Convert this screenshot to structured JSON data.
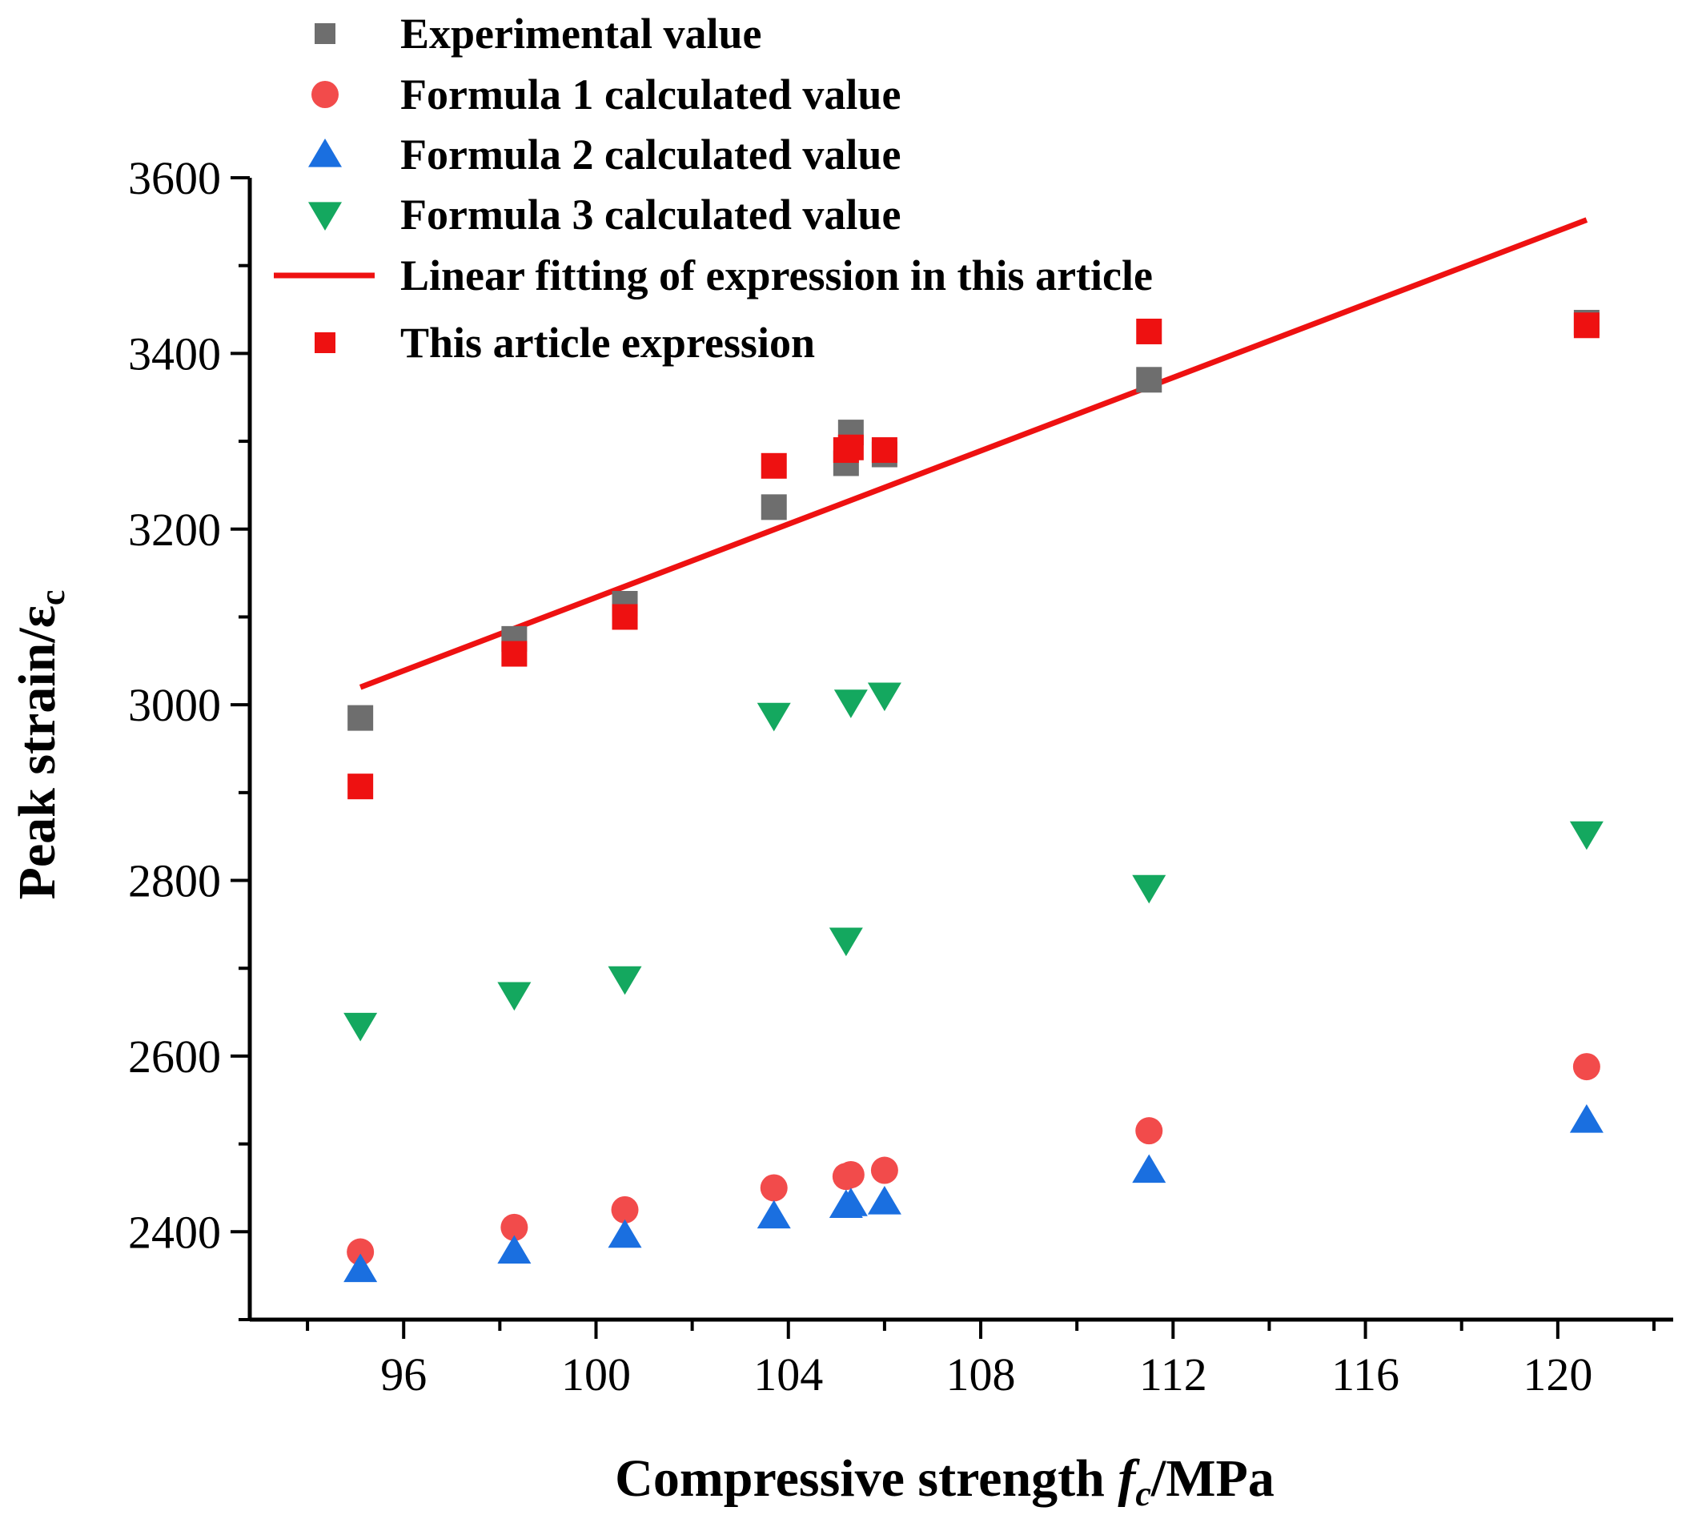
{
  "chart_data": {
    "type": "scatter",
    "xlabel": "Compressive strength fc/MPa",
    "xlabel_parts": {
      "prefix": "Compressive strength ",
      "var": "f",
      "sub": "c",
      "suffix": "/MPa"
    },
    "ylabel": "Peak strain/εc",
    "ylabel_parts": {
      "prefix": "Peak strain/",
      "sym": "ε",
      "sub": "c"
    },
    "xlim": [
      92.8,
      122.4
    ],
    "ylim": [
      2300,
      3600
    ],
    "xticks": [
      96,
      100,
      104,
      108,
      112,
      116,
      120
    ],
    "yticks": [
      2400,
      2600,
      2800,
      3000,
      3200,
      3400,
      3600
    ],
    "legend_position": "top-left",
    "series": [
      {
        "name": "Experimental value",
        "marker": "square",
        "color": "#6e6e6e",
        "points": [
          [
            95.1,
            2985
          ],
          [
            98.3,
            3075
          ],
          [
            100.6,
            3115
          ],
          [
            103.7,
            3225
          ],
          [
            105.2,
            3275
          ],
          [
            105.3,
            3310
          ],
          [
            106.0,
            3285
          ],
          [
            111.5,
            3370
          ],
          [
            120.6,
            3435
          ]
        ]
      },
      {
        "name": "Formula 1 calculated value",
        "marker": "circle",
        "color": "#f24b4b",
        "points": [
          [
            95.1,
            2377
          ],
          [
            98.3,
            2405
          ],
          [
            100.6,
            2425
          ],
          [
            103.7,
            2450
          ],
          [
            105.2,
            2463
          ],
          [
            105.3,
            2465
          ],
          [
            106.0,
            2470
          ],
          [
            111.5,
            2515
          ],
          [
            120.6,
            2588
          ]
        ]
      },
      {
        "name": "Formula 2 calculated value",
        "marker": "triangle-up",
        "color": "#1a6fe0",
        "points": [
          [
            95.1,
            2357
          ],
          [
            98.3,
            2378
          ],
          [
            100.6,
            2396
          ],
          [
            103.7,
            2418
          ],
          [
            105.2,
            2430
          ],
          [
            105.3,
            2432
          ],
          [
            106.0,
            2434
          ],
          [
            111.5,
            2470
          ],
          [
            120.6,
            2527
          ]
        ]
      },
      {
        "name": "Formula 3 calculated value",
        "marker": "triangle-down",
        "color": "#14a85f",
        "points": [
          [
            95.1,
            2635
          ],
          [
            98.3,
            2670
          ],
          [
            100.6,
            2688
          ],
          [
            103.7,
            2988
          ],
          [
            105.2,
            2732
          ],
          [
            105.3,
            3003
          ],
          [
            106.0,
            3011
          ],
          [
            111.5,
            2792
          ],
          [
            120.6,
            2853
          ]
        ]
      },
      {
        "name": "Linear fitting of expression in this article",
        "marker": "line",
        "color": "#ee1111",
        "points": [
          [
            95.1,
            3020
          ],
          [
            120.6,
            3552
          ]
        ]
      },
      {
        "name": " This article expression",
        "marker": "square",
        "color": "#ee1111",
        "points": [
          [
            95.1,
            2907
          ],
          [
            98.3,
            3058
          ],
          [
            100.6,
            3100
          ],
          [
            103.7,
            3272
          ],
          [
            105.2,
            3290
          ],
          [
            105.3,
            3293
          ],
          [
            106.0,
            3290
          ],
          [
            111.5,
            3425
          ],
          [
            120.6,
            3432
          ]
        ]
      }
    ]
  }
}
